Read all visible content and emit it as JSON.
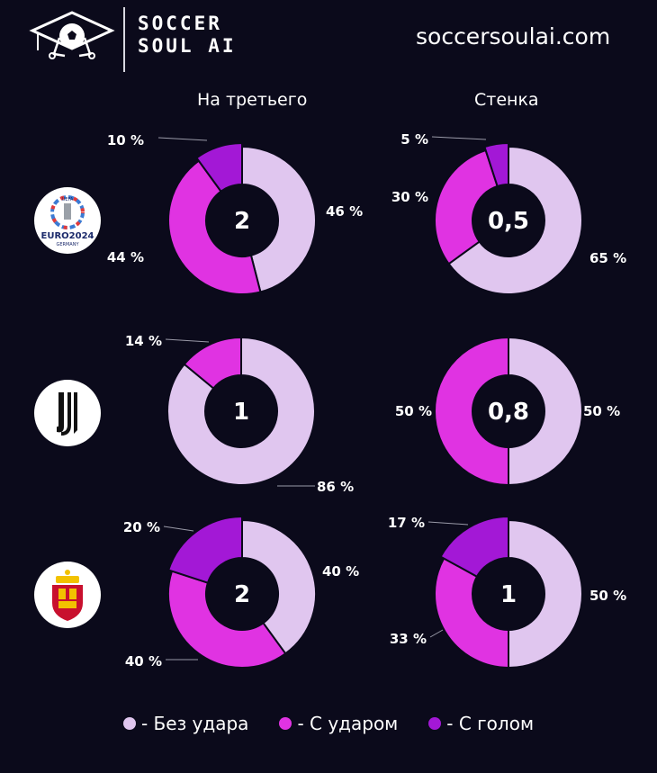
{
  "brand": {
    "line1": "SOCCER",
    "line2": "SOUL AI",
    "site": "soccersoulai.com"
  },
  "colors": {
    "no_shot": "#e0c6ef",
    "with_shot": "#e033e2",
    "with_goal": "#a318d6",
    "background": "#0b0a1b"
  },
  "columns": [
    "На третьего",
    "Стенка"
  ],
  "badges": [
    {
      "name": "euro-2024-logo",
      "text_top": "UEFA",
      "text_main": "EURO2024",
      "text_sub": "GERMANY"
    },
    {
      "name": "juventus-logo"
    },
    {
      "name": "spain-federation-logo"
    }
  ],
  "legend": [
    "- Без удара",
    "- С ударом",
    "- С голом"
  ],
  "chart_data": [
    {
      "type": "pie",
      "row": "euro-2024",
      "column": "На третьего",
      "center": "2",
      "categories": [
        "Без удара",
        "С ударом",
        "С голом"
      ],
      "values": [
        46,
        44,
        10
      ],
      "labels": [
        "46 %",
        "44 %",
        "10 %"
      ]
    },
    {
      "type": "pie",
      "row": "euro-2024",
      "column": "Стенка",
      "center": "0,5",
      "categories": [
        "Без удара",
        "С ударом",
        "С голом"
      ],
      "values": [
        65,
        30,
        5
      ],
      "labels": [
        "65 %",
        "30 %",
        "5 %"
      ]
    },
    {
      "type": "pie",
      "row": "juventus",
      "column": "На третьего",
      "center": "1",
      "categories": [
        "Без удара",
        "С ударом"
      ],
      "values": [
        86,
        14
      ],
      "labels": [
        "86 %",
        "14 %"
      ]
    },
    {
      "type": "pie",
      "row": "juventus",
      "column": "Стенка",
      "center": "0,8",
      "categories": [
        "Без удара",
        "С ударом"
      ],
      "values": [
        50,
        50
      ],
      "labels": [
        "50 %",
        "50 %"
      ]
    },
    {
      "type": "pie",
      "row": "spain",
      "column": "На третьего",
      "center": "2",
      "categories": [
        "Без удара",
        "С ударом",
        "С голом"
      ],
      "values": [
        40,
        40,
        20
      ],
      "labels": [
        "40 %",
        "40 %",
        "20 %"
      ]
    },
    {
      "type": "pie",
      "row": "spain",
      "column": "Стенка",
      "center": "1",
      "categories": [
        "Без удара",
        "С ударом",
        "С голом"
      ],
      "values": [
        50,
        33,
        17
      ],
      "labels": [
        "50 %",
        "33 %",
        "17 %"
      ]
    }
  ]
}
